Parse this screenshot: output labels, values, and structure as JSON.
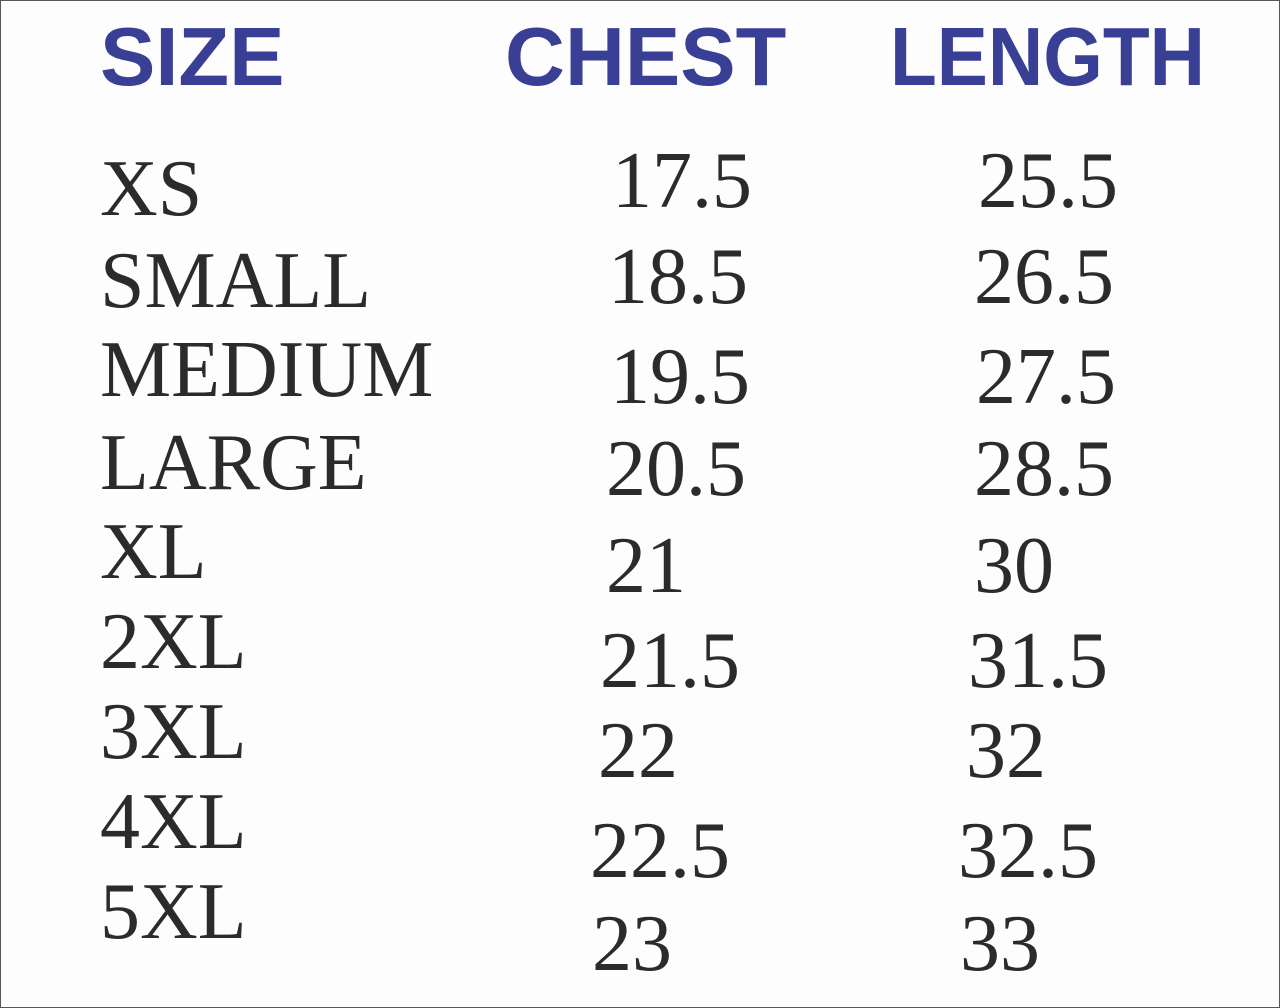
{
  "table": {
    "columns": [
      "SIZE",
      "CHEST",
      "LENGTH"
    ],
    "rows": [
      [
        "XS",
        17.5,
        25.5
      ],
      [
        "SMALL",
        18.5,
        26.5
      ],
      [
        "MEDIUM",
        19.5,
        27.5
      ],
      [
        "LARGE",
        20.5,
        28.5
      ],
      [
        "XL",
        21,
        30
      ],
      [
        "2XL",
        21.5,
        31.5
      ],
      [
        "3XL",
        22,
        32
      ],
      [
        "4XL",
        22.5,
        32.5
      ],
      [
        "5XL",
        23,
        33
      ]
    ]
  }
}
